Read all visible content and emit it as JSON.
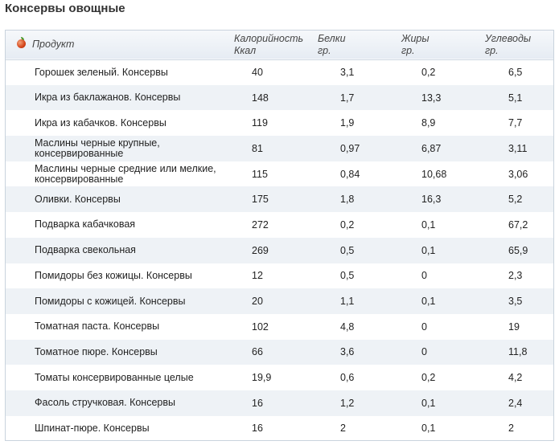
{
  "title": "Консервы овощные",
  "icons": {
    "header_icon": "apple-icon"
  },
  "header": {
    "product": "Продукт",
    "calories": "Калорийность",
    "calories_unit": "Ккал",
    "protein": "Белки",
    "protein_unit": "гр.",
    "fat": "Жиры",
    "fat_unit": "гр.",
    "carbs": "Углеводы",
    "carbs_unit": "гр."
  },
  "rows": [
    {
      "name": "Горошек зеленый. Консервы",
      "cal": "40",
      "prot": "3,1",
      "fat": "0,2",
      "carb": "6,5"
    },
    {
      "name": "Икра из баклажанов. Консервы",
      "cal": "148",
      "prot": "1,7",
      "fat": "13,3",
      "carb": "5,1"
    },
    {
      "name": "Икра из кабачков. Консервы",
      "cal": "119",
      "prot": "1,9",
      "fat": "8,9",
      "carb": "7,7"
    },
    {
      "name": "Маслины черные крупные, консервированные",
      "cal": "81",
      "prot": "0,97",
      "fat": "6,87",
      "carb": "3,11"
    },
    {
      "name": "Маслины черные средние или мелкие, консервированные",
      "cal": "115",
      "prot": "0,84",
      "fat": "10,68",
      "carb": "3,06"
    },
    {
      "name": "Оливки. Консервы",
      "cal": "175",
      "prot": "1,8",
      "fat": "16,3",
      "carb": "5,2"
    },
    {
      "name": "Подварка кабачковая",
      "cal": "272",
      "prot": "0,2",
      "fat": "0,1",
      "carb": "67,2"
    },
    {
      "name": "Подварка свекольная",
      "cal": "269",
      "prot": "0,5",
      "fat": "0,1",
      "carb": "65,9"
    },
    {
      "name": "Помидоры без кожицы. Консервы",
      "cal": "12",
      "prot": "0,5",
      "fat": "0",
      "carb": "2,3"
    },
    {
      "name": "Помидоры с кожицей. Консервы",
      "cal": "20",
      "prot": "1,1",
      "fat": "0,1",
      "carb": "3,5"
    },
    {
      "name": "Томатная паста. Консервы",
      "cal": "102",
      "prot": "4,8",
      "fat": "0",
      "carb": "19"
    },
    {
      "name": "Томатное пюре. Консервы",
      "cal": "66",
      "prot": "3,6",
      "fat": "0",
      "carb": "11,8"
    },
    {
      "name": "Томаты консервированные целые",
      "cal": "19,9",
      "prot": "0,6",
      "fat": "0,2",
      "carb": "4,2"
    },
    {
      "name": "Фасоль стручковая. Консервы",
      "cal": "16",
      "prot": "1,2",
      "fat": "0,1",
      "carb": "2,4"
    },
    {
      "name": "Шпинат-пюре. Консервы",
      "cal": "16",
      "prot": "2",
      "fat": "0,1",
      "carb": "2"
    }
  ]
}
